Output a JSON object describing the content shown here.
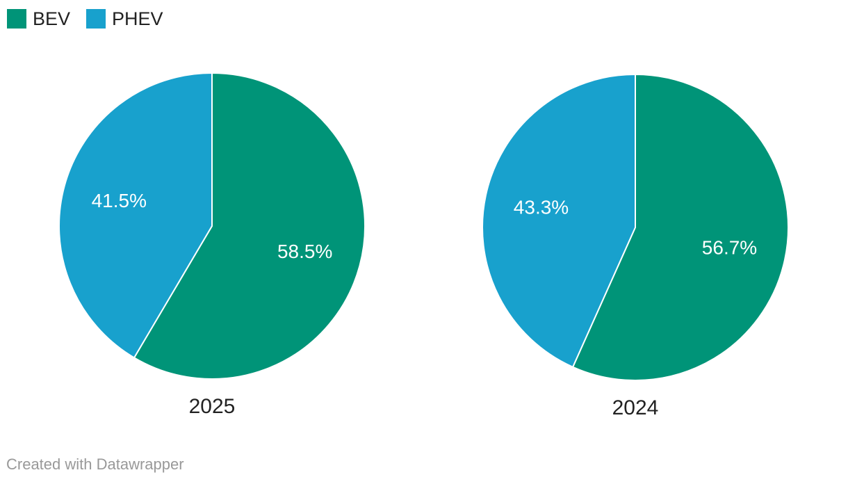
{
  "legend": {
    "items": [
      {
        "label": "BEV",
        "color": "#009478"
      },
      {
        "label": "PHEV",
        "color": "#18a1cd"
      }
    ]
  },
  "footer": {
    "text": "Created with Datawrapper"
  },
  "chart_data": {
    "type": "pie",
    "legend_position": "top-left",
    "start_angle_deg": 0,
    "direction": "clockwise",
    "slice_label_color": "#ffffff",
    "slice_stroke_color": "#ffffff",
    "pies": [
      {
        "title": "2025",
        "slices": [
          {
            "label": "BEV",
            "value": 58.5,
            "display": "58.5%",
            "color": "#009478"
          },
          {
            "label": "PHEV",
            "value": 41.5,
            "display": "41.5%",
            "color": "#18a1cd"
          }
        ]
      },
      {
        "title": "2024",
        "slices": [
          {
            "label": "BEV",
            "value": 56.7,
            "display": "56.7%",
            "color": "#009478"
          },
          {
            "label": "PHEV",
            "value": 43.3,
            "display": "43.3%",
            "color": "#18a1cd"
          }
        ]
      }
    ]
  }
}
